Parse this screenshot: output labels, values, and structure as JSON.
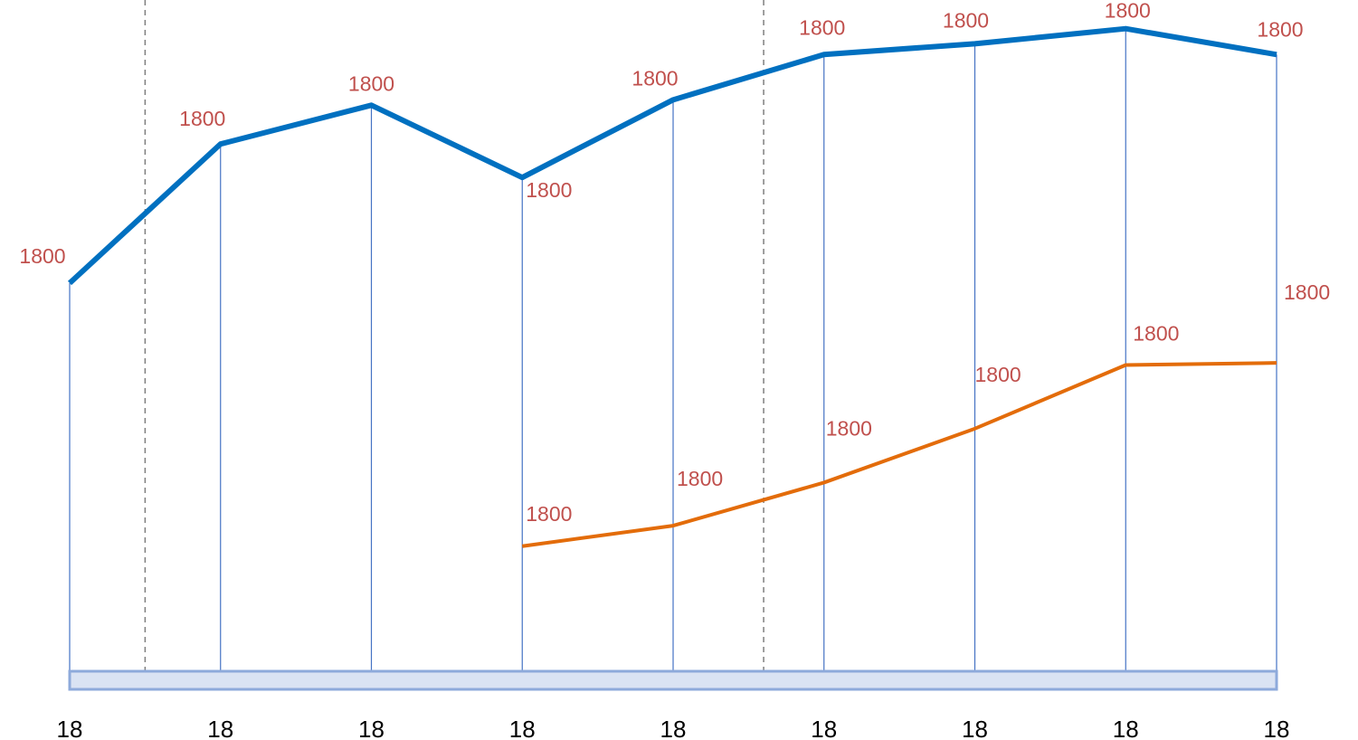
{
  "chart_data": {
    "type": "line",
    "title": "",
    "xlabel": "",
    "ylabel": "",
    "grid": false,
    "legend": "none",
    "categories": [
      "18",
      "18",
      "18",
      "18",
      "18",
      "18",
      "18",
      "18",
      "18"
    ],
    "series": [
      {
        "color": "#0070c0",
        "values": [
          1.0,
          2.29,
          2.65,
          1.98,
          2.7,
          3.12,
          3.22,
          3.36,
          3.12
        ],
        "labels": [
          "1800",
          "1800",
          "1800",
          "1800",
          "1800",
          "1800",
          "1800",
          "1800",
          "1800"
        ]
      },
      {
        "color": "#e36c0a",
        "values": [
          null,
          null,
          null,
          -1.44,
          -1.25,
          -0.85,
          -0.35,
          0.24,
          0.26
        ],
        "labels": [
          null,
          null,
          null,
          "1800",
          "1800",
          "1800",
          "1800",
          "1800",
          "1800"
        ]
      }
    ],
    "marker_lines": {
      "color": "#7f7f7f",
      "style": "dashed",
      "at_category_fraction": [
        0.5,
        4.6
      ]
    },
    "axis_band": {
      "fill": "#dae3f3",
      "stroke": "#8eaadb"
    },
    "label_color": "#c0504d",
    "drop_line_color": "#4472c4",
    "ylim": [
      -2.6,
      3.5
    ]
  }
}
